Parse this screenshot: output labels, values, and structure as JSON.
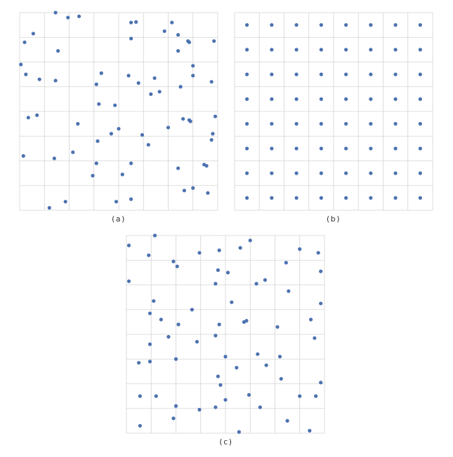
{
  "colors": {
    "point": "#4c72b0",
    "grid": "#d4d4d4"
  },
  "chart_data": [
    {
      "type": "scatter",
      "caption": "(a)",
      "xlim": [
        0,
        8
      ],
      "ylim": [
        0,
        8
      ],
      "grid": true,
      "points": [
        [
          1.45,
          8.0
        ],
        [
          1.95,
          7.8
        ],
        [
          2.4,
          7.85
        ],
        [
          4.5,
          7.6
        ],
        [
          4.7,
          7.62
        ],
        [
          6.15,
          7.6
        ],
        [
          0.55,
          7.15
        ],
        [
          5.85,
          7.25
        ],
        [
          6.4,
          7.1
        ],
        [
          0.2,
          6.8
        ],
        [
          4.5,
          6.95
        ],
        [
          6.8,
          6.85
        ],
        [
          6.85,
          6.8
        ],
        [
          7.85,
          6.85
        ],
        [
          1.55,
          6.45
        ],
        [
          6.4,
          6.45
        ],
        [
          0.05,
          5.9
        ],
        [
          7.0,
          5.85
        ],
        [
          0.25,
          5.5
        ],
        [
          3.3,
          5.55
        ],
        [
          4.4,
          5.45
        ],
        [
          0.8,
          5.3
        ],
        [
          1.45,
          5.25
        ],
        [
          5.45,
          5.35
        ],
        [
          7.0,
          5.45
        ],
        [
          7.75,
          5.2
        ],
        [
          3.1,
          5.1
        ],
        [
          4.8,
          5.15
        ],
        [
          6.5,
          5.0
        ],
        [
          5.65,
          4.8
        ],
        [
          5.3,
          4.7
        ],
        [
          3.2,
          4.3
        ],
        [
          3.85,
          4.25
        ],
        [
          0.7,
          3.85
        ],
        [
          0.35,
          3.75
        ],
        [
          6.6,
          3.7
        ],
        [
          6.85,
          3.65
        ],
        [
          6.9,
          3.6
        ],
        [
          7.9,
          3.8
        ],
        [
          2.35,
          3.5
        ],
        [
          4.0,
          3.3
        ],
        [
          6.0,
          3.35
        ],
        [
          3.7,
          3.1
        ],
        [
          4.95,
          3.05
        ],
        [
          7.8,
          3.1
        ],
        [
          3.15,
          2.8
        ],
        [
          7.75,
          2.85
        ],
        [
          5.2,
          2.65
        ],
        [
          2.15,
          2.35
        ],
        [
          0.15,
          2.2
        ],
        [
          1.4,
          2.1
        ],
        [
          3.1,
          1.9
        ],
        [
          4.5,
          1.9
        ],
        [
          7.45,
          1.85
        ],
        [
          7.55,
          1.8
        ],
        [
          6.4,
          1.7
        ],
        [
          2.95,
          1.4
        ],
        [
          4.15,
          1.45
        ],
        [
          7.0,
          0.9
        ],
        [
          6.65,
          0.8
        ],
        [
          7.6,
          0.7
        ],
        [
          1.85,
          0.35
        ],
        [
          3.9,
          0.35
        ],
        [
          4.5,
          0.45
        ],
        [
          1.2,
          0.1
        ]
      ]
    },
    {
      "type": "scatter",
      "caption": "(b)",
      "xlim": [
        0,
        8
      ],
      "ylim": [
        0,
        8
      ],
      "grid": true,
      "x": [
        0.5,
        1.5,
        2.5,
        3.5,
        4.5,
        5.5,
        6.5,
        7.5
      ],
      "y": [
        0.5,
        1.5,
        2.5,
        3.5,
        4.5,
        5.5,
        6.5,
        7.5
      ]
    },
    {
      "type": "scatter",
      "caption": "(c)",
      "xlim": [
        0,
        8
      ],
      "ylim": [
        0,
        8
      ],
      "grid": true,
      "points": [
        [
          1.15,
          8.0
        ],
        [
          5.0,
          7.8
        ],
        [
          0.1,
          7.6
        ],
        [
          4.6,
          7.5
        ],
        [
          3.75,
          7.4
        ],
        [
          7.0,
          7.45
        ],
        [
          2.95,
          7.3
        ],
        [
          7.75,
          7.3
        ],
        [
          0.9,
          7.2
        ],
        [
          1.9,
          6.95
        ],
        [
          6.45,
          6.9
        ],
        [
          2.05,
          6.75
        ],
        [
          3.7,
          6.6
        ],
        [
          4.1,
          6.5
        ],
        [
          7.85,
          6.55
        ],
        [
          0.1,
          6.15
        ],
        [
          3.6,
          6.05
        ],
        [
          5.6,
          6.2
        ],
        [
          5.25,
          6.05
        ],
        [
          6.55,
          5.75
        ],
        [
          1.1,
          5.35
        ],
        [
          4.25,
          5.3
        ],
        [
          7.85,
          5.25
        ],
        [
          2.65,
          5.0
        ],
        [
          0.95,
          4.85
        ],
        [
          1.4,
          4.6
        ],
        [
          2.1,
          4.4
        ],
        [
          7.45,
          4.6
        ],
        [
          4.85,
          4.55
        ],
        [
          4.75,
          4.5
        ],
        [
          3.75,
          4.4
        ],
        [
          6.1,
          4.3
        ],
        [
          1.7,
          3.9
        ],
        [
          3.6,
          3.95
        ],
        [
          7.6,
          3.85
        ],
        [
          0.95,
          3.6
        ],
        [
          2.85,
          3.7
        ],
        [
          4.0,
          3.1
        ],
        [
          5.3,
          3.2
        ],
        [
          6.2,
          3.1
        ],
        [
          0.5,
          2.85
        ],
        [
          0.95,
          2.9
        ],
        [
          2.0,
          3.0
        ],
        [
          4.45,
          2.65
        ],
        [
          5.65,
          2.75
        ],
        [
          3.7,
          2.3
        ],
        [
          6.25,
          2.2
        ],
        [
          3.8,
          1.95
        ],
        [
          7.85,
          2.05
        ],
        [
          0.55,
          1.5
        ],
        [
          1.2,
          1.5
        ],
        [
          4.95,
          1.55
        ],
        [
          7.0,
          1.5
        ],
        [
          7.65,
          1.5
        ],
        [
          4.0,
          1.35
        ],
        [
          2.0,
          1.1
        ],
        [
          3.6,
          1.05
        ],
        [
          5.4,
          1.05
        ],
        [
          2.95,
          0.95
        ],
        [
          1.9,
          0.6
        ],
        [
          6.5,
          0.5
        ],
        [
          0.55,
          0.3
        ],
        [
          7.4,
          0.1
        ],
        [
          4.55,
          0.05
        ]
      ]
    }
  ]
}
